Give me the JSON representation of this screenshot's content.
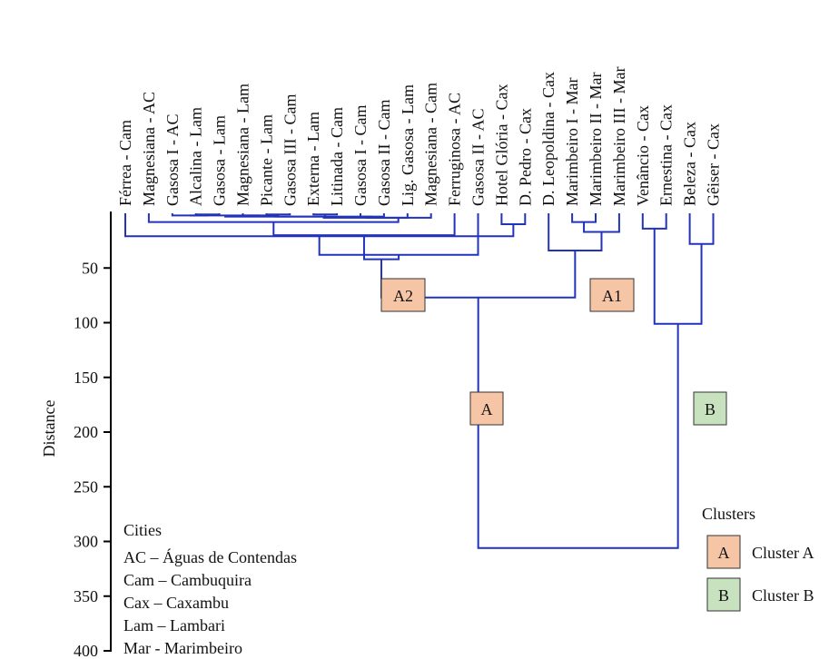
{
  "chart_data": {
    "type": "dendrogram",
    "ylabel": "Distance",
    "ylim": [
      0,
      400
    ],
    "yticks": [
      50,
      100,
      150,
      200,
      250,
      300,
      350,
      400
    ],
    "leaves": [
      "Férrea - Cam",
      "Magnesiana - AC",
      "Gasosa I - AC",
      "Alcalina - Lam",
      "Gasosa - Lam",
      "Magnesiana - Lam",
      "Picante - Lam",
      "Gasosa III - Cam",
      "Externa - Lam",
      "Litinada - Cam",
      "Gasosa I - Cam",
      "Gasosa II - Cam",
      "Lig. Gasosa - Lam",
      "Magnesiana - Cam",
      "Ferruginosa - AC",
      "Gasosa II - AC",
      "Hotel Glória - Cax",
      "D. Pedro - Cax",
      "D. Leopoldina - Cax",
      "Marimbeiro I - Mar",
      "Marimbeiro II - Mar",
      "Marimbeiro III - Mar",
      "Venâncio - Cax",
      "Ernestina - Cax",
      "Beleza - Cax",
      "Gêiser - Cax"
    ],
    "merges": [
      {
        "a": 3,
        "b": 4,
        "height": 1
      },
      {
        "a": 6,
        "b": 7,
        "height": 1
      },
      {
        "a": 8,
        "b": 9,
        "height": 1
      },
      {
        "a": 10,
        "b": 11,
        "height": 3
      },
      {
        "a": 5,
        "b": 27,
        "height": 2
      },
      {
        "a": 2,
        "b": 26,
        "height": 2
      },
      {
        "a": 31,
        "b": 30,
        "height": 2
      },
      {
        "a": 32,
        "b": 28,
        "height": 3
      },
      {
        "a": 33,
        "b": 29,
        "height": 3
      },
      {
        "a": 34,
        "b": 12,
        "height": 4
      },
      {
        "a": 35,
        "b": 13,
        "height": 4
      },
      {
        "a": 19,
        "b": 20,
        "height": 8
      },
      {
        "a": 1,
        "b": 36,
        "height": 8
      },
      {
        "a": 16,
        "b": 17,
        "height": 10
      },
      {
        "a": 22,
        "b": 23,
        "height": 14
      },
      {
        "a": 37,
        "b": 21,
        "height": 17
      },
      {
        "a": 38,
        "b": 14,
        "height": 20
      },
      {
        "a": 39,
        "b": 0,
        "height": 21
      },
      {
        "a": 24,
        "b": 25,
        "height": 28
      },
      {
        "a": 41,
        "b": 18,
        "height": 34
      },
      {
        "a": 43,
        "b": 15,
        "height": 38
      },
      {
        "a": 46,
        "b": 42,
        "height": 42
      },
      {
        "a": 47,
        "b": 45,
        "height": 77
      },
      {
        "a": 44,
        "b": 40,
        "height": 101
      },
      {
        "a": 48,
        "b": 49,
        "height": 306
      }
    ],
    "annotations": [
      {
        "label": "A2",
        "cluster": "A",
        "near_merge": 46
      },
      {
        "label": "A1",
        "cluster": "A",
        "near_merge": 45
      },
      {
        "label": "A",
        "cluster": "A",
        "near_merge": 47
      },
      {
        "label": "B",
        "cluster": "B",
        "near_merge": 49
      }
    ],
    "line_color": "#2233bb"
  },
  "legend_cities": {
    "title": "Cities",
    "items": [
      "AC – Águas de Contendas",
      "Cam – Cambuquira",
      "Cax – Caxambu",
      "Lam – Lambari",
      "Mar - Marimbeiro"
    ]
  },
  "legend_clusters": {
    "title": "Clusters",
    "items": [
      {
        "key": "A",
        "label": "Cluster A",
        "color": "#f6c5a6"
      },
      {
        "key": "B",
        "label": "Cluster B",
        "color": "#c8e2bf"
      }
    ]
  },
  "colors": {
    "line": "#2233bb",
    "axis": "#000000",
    "cluster_a_fill": "#f6c5a6",
    "cluster_b_fill": "#c8e2bf",
    "box_border": "#333333"
  }
}
